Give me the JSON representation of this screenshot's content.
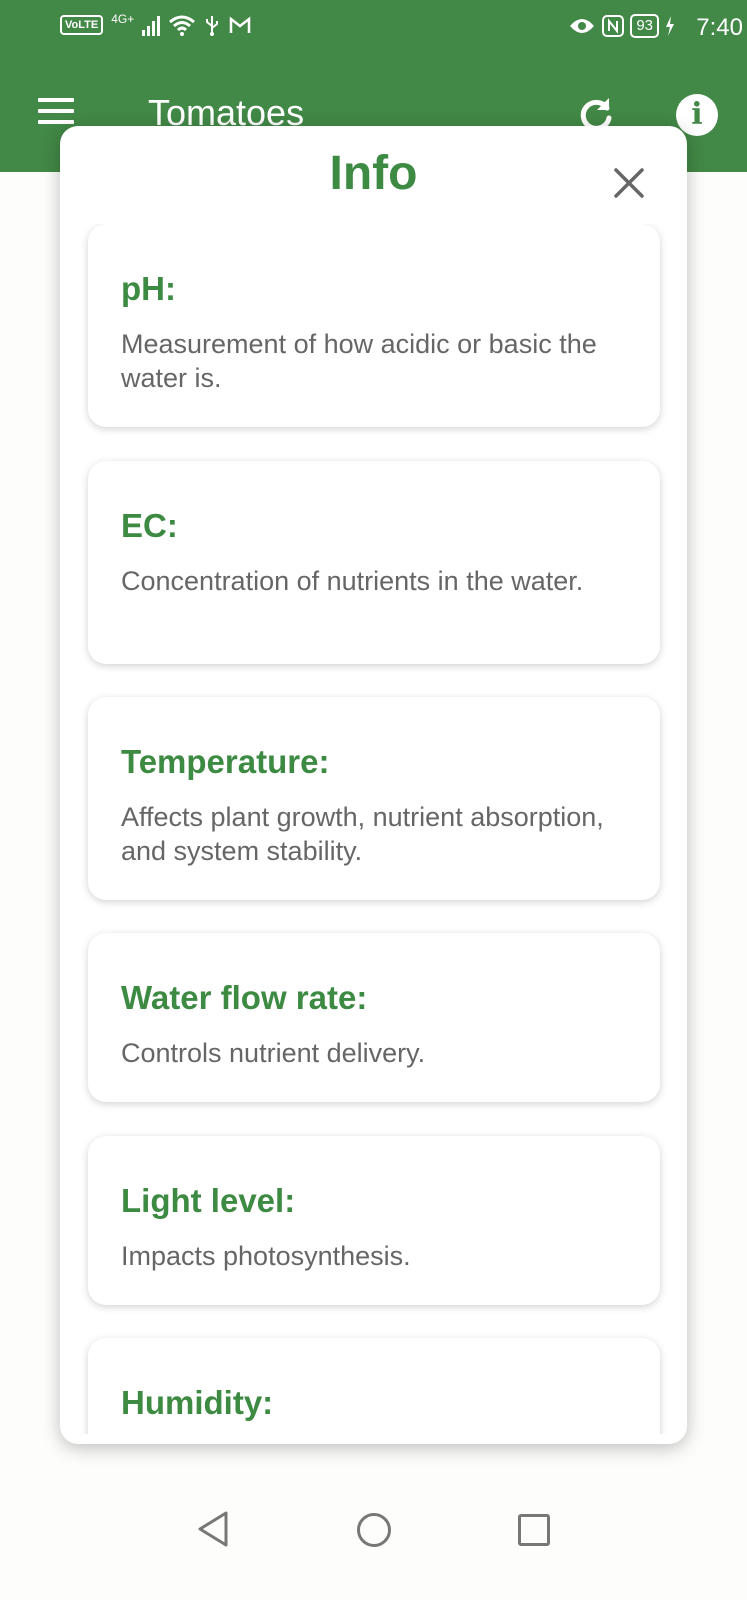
{
  "status_bar": {
    "network": "VoLTE",
    "signal": "4G+",
    "battery": "93",
    "time": "7:40"
  },
  "app_bar": {
    "title": "Tomatoes",
    "color": "#428846"
  },
  "info_modal": {
    "title": "Info",
    "items": [
      {
        "heading": "pH:",
        "description": "Measurement of how acidic or basic the water is."
      },
      {
        "heading": "EC:",
        "description": "Concentration of nutrients in the water."
      },
      {
        "heading": "Temperature:",
        "description": "Affects plant growth, nutrient absorption, and system stability."
      },
      {
        "heading": "Water flow rate:",
        "description": "Controls nutrient delivery."
      },
      {
        "heading": "Light level:",
        "description": "Impacts photosynthesis."
      },
      {
        "heading": "Humidity:",
        "description": ""
      }
    ]
  },
  "icons": {
    "menu": "menu-icon",
    "refresh": "refresh-icon",
    "info": "info-icon",
    "close": "close-icon",
    "nav_back": "back-triangle-icon",
    "nav_home": "home-circle-icon",
    "nav_recent": "recent-square-icon"
  }
}
